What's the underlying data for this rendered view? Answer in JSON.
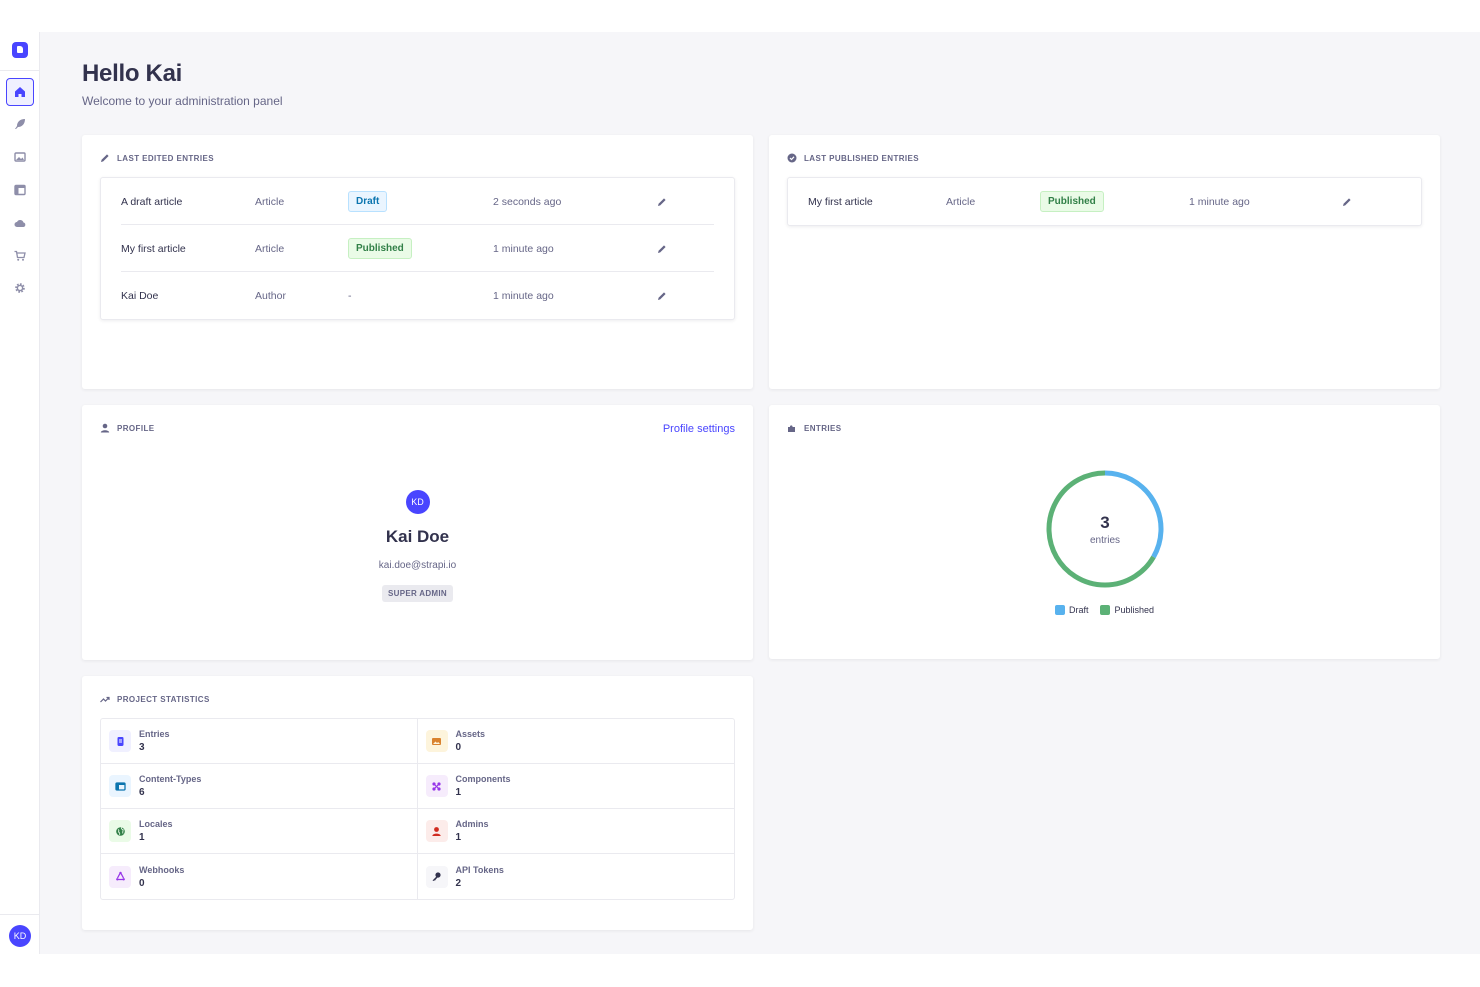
{
  "greeting": {
    "title": "Hello Kai",
    "subtitle": "Welcome to your administration panel"
  },
  "user": {
    "initials": "KD"
  },
  "last_edited": {
    "title": "LAST EDITED ENTRIES",
    "rows": [
      {
        "name": "A draft article",
        "type": "Article",
        "status": "Draft",
        "status_kind": "draft",
        "time": "2 seconds ago"
      },
      {
        "name": "My first article",
        "type": "Article",
        "status": "Published",
        "status_kind": "published",
        "time": "1 minute ago"
      },
      {
        "name": "Kai Doe",
        "type": "Author",
        "status": "-",
        "status_kind": "none",
        "time": "1 minute ago"
      }
    ]
  },
  "last_published": {
    "title": "LAST PUBLISHED ENTRIES",
    "rows": [
      {
        "name": "My first article",
        "type": "Article",
        "status": "Published",
        "status_kind": "published",
        "time": "1 minute ago"
      }
    ]
  },
  "profile": {
    "title": "PROFILE",
    "settings_link": "Profile settings",
    "initials": "KD",
    "name": "Kai Doe",
    "email": "kai.doe@strapi.io",
    "role": "SUPER ADMIN"
  },
  "entries_chart": {
    "title": "ENTRIES",
    "total": "3",
    "unit": "entries",
    "legend": [
      {
        "label": "Draft",
        "color": "#58b2ee"
      },
      {
        "label": "Published",
        "color": "#5cb176"
      }
    ]
  },
  "chart_data": {
    "type": "pie",
    "categories": [
      "Draft",
      "Published"
    ],
    "values": [
      1,
      2
    ]
  },
  "project_stats": {
    "title": "PROJECT STATISTICS",
    "items": [
      {
        "label": "Entries",
        "value": "3",
        "icon": "entries-icon",
        "bg": "#f0f0ff",
        "fg": "#4945ff"
      },
      {
        "label": "Assets",
        "value": "0",
        "icon": "assets-icon",
        "bg": "#fdf4dc",
        "fg": "#d9822f"
      },
      {
        "label": "Content-Types",
        "value": "6",
        "icon": "content-types-icon",
        "bg": "#eaf5ff",
        "fg": "#0c75af"
      },
      {
        "label": "Components",
        "value": "1",
        "icon": "components-icon",
        "bg": "#f6ecfc",
        "fg": "#9736e8"
      },
      {
        "label": "Locales",
        "value": "1",
        "icon": "locales-icon",
        "bg": "#eafbe7",
        "fg": "#328048"
      },
      {
        "label": "Admins",
        "value": "1",
        "icon": "admins-icon",
        "bg": "#fcecea",
        "fg": "#d02b20"
      },
      {
        "label": "Webhooks",
        "value": "0",
        "icon": "webhooks-icon",
        "bg": "#f6ecfc",
        "fg": "#9736e8"
      },
      {
        "label": "API Tokens",
        "value": "2",
        "icon": "api-tokens-icon",
        "bg": "#f6f6f9",
        "fg": "#32324d"
      }
    ]
  },
  "colors": {
    "primary": "#4945ff",
    "background": "#f6f6f9"
  }
}
